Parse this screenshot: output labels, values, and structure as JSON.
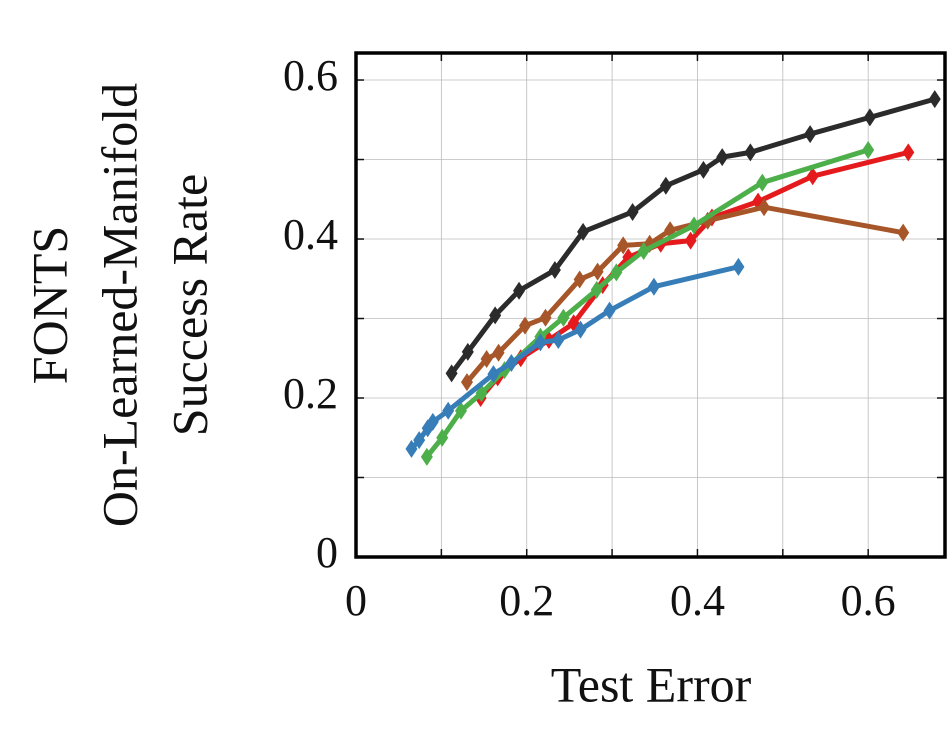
{
  "chart_data": {
    "type": "line",
    "xlabel": "Test Error",
    "ylabel": [
      "FONTS",
      "On-Learned-Manifold",
      "Success Rate"
    ],
    "xlim": [
      0,
      0.69
    ],
    "ylim": [
      0,
      0.634
    ],
    "xticks": [
      0,
      0.2,
      0.4,
      0.6
    ],
    "yticks": [
      0,
      0.2,
      0.4,
      0.6
    ],
    "minor_xticks": [
      0.1,
      0.3,
      0.5
    ],
    "minor_yticks": [
      0.1,
      0.3,
      0.5
    ],
    "grid": true,
    "marker": "diamond",
    "series": [
      {
        "color": "#2b2b2b",
        "x": [
          0.112,
          0.131,
          0.163,
          0.191,
          0.233,
          0.266,
          0.324,
          0.363,
          0.407,
          0.429,
          0.462,
          0.532,
          0.602,
          0.678
        ],
        "values": [
          0.231,
          0.258,
          0.304,
          0.335,
          0.361,
          0.409,
          0.434,
          0.467,
          0.487,
          0.503,
          0.509,
          0.532,
          0.553,
          0.576
        ]
      },
      {
        "color": "#e41a1c",
        "x": [
          0.146,
          0.166,
          0.193,
          0.226,
          0.255,
          0.289,
          0.319,
          0.357,
          0.392,
          0.417,
          0.471,
          0.535,
          0.647
        ],
        "values": [
          0.2,
          0.226,
          0.25,
          0.273,
          0.294,
          0.342,
          0.377,
          0.394,
          0.398,
          0.427,
          0.447,
          0.479,
          0.509
        ]
      },
      {
        "color": "#a65628",
        "x": [
          0.13,
          0.153,
          0.167,
          0.198,
          0.222,
          0.262,
          0.283,
          0.313,
          0.344,
          0.368,
          0.412,
          0.478,
          0.641
        ],
        "values": [
          0.22,
          0.249,
          0.257,
          0.291,
          0.301,
          0.349,
          0.359,
          0.392,
          0.394,
          0.411,
          0.423,
          0.44,
          0.408
        ]
      },
      {
        "color": "#4daf4a",
        "x": [
          0.083,
          0.101,
          0.123,
          0.147,
          0.174,
          0.216,
          0.243,
          0.282,
          0.305,
          0.337,
          0.396,
          0.476,
          0.6
        ],
        "values": [
          0.126,
          0.15,
          0.184,
          0.206,
          0.235,
          0.277,
          0.301,
          0.336,
          0.358,
          0.385,
          0.417,
          0.471,
          0.512
        ]
      },
      {
        "color": "#377eb8",
        "x": [
          0.065,
          0.074,
          0.084,
          0.09,
          0.108,
          0.161,
          0.182,
          0.216,
          0.237,
          0.263,
          0.297,
          0.349,
          0.448
        ],
        "values": [
          0.136,
          0.147,
          0.162,
          0.17,
          0.184,
          0.23,
          0.244,
          0.27,
          0.273,
          0.286,
          0.31,
          0.34,
          0.365
        ]
      }
    ]
  }
}
